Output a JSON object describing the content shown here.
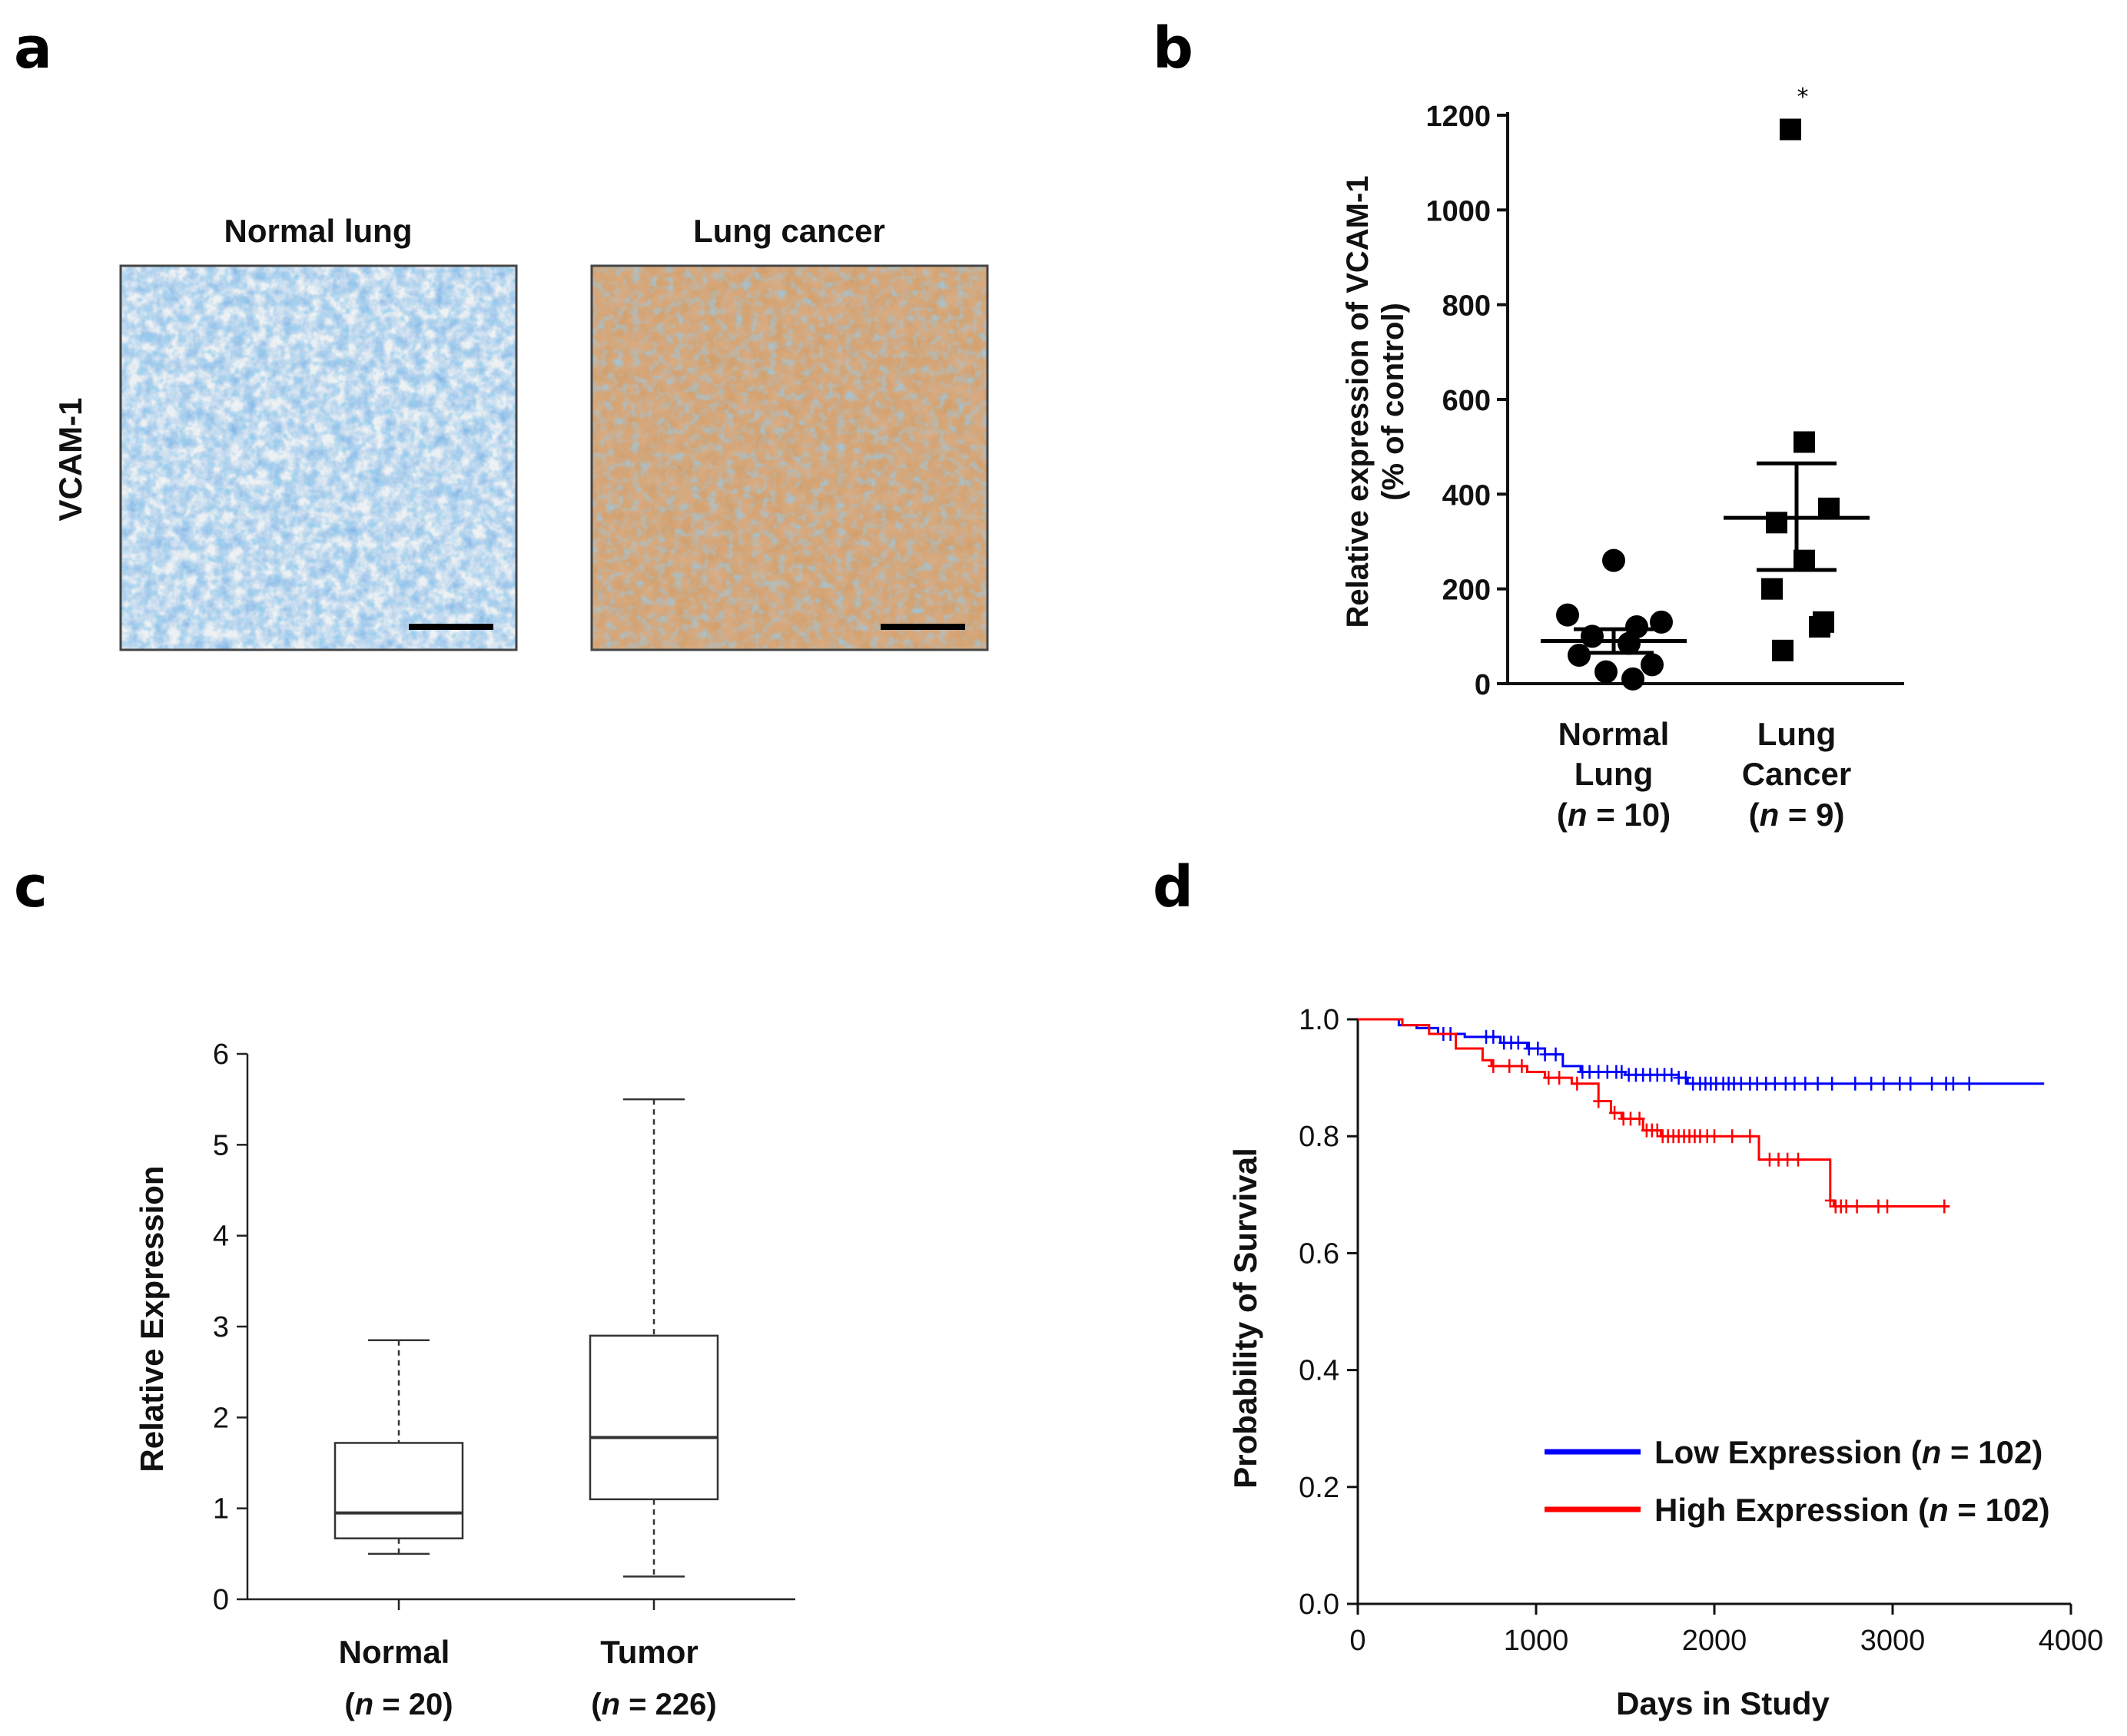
{
  "panels": {
    "a": "a",
    "b": "b",
    "c": "c",
    "d": "d"
  },
  "panel_a": {
    "row_label": "VCAM-1",
    "columns": [
      "Normal lung",
      "Lung cancer"
    ]
  },
  "chart_data": [
    {
      "panel": "b",
      "type": "scatter",
      "ylabel_line1": "Relative expression of VCAM-1",
      "ylabel_line2": "(% of control)",
      "ylim": [
        0,
        1200
      ],
      "yticks": [
        0,
        200,
        400,
        600,
        800,
        1000,
        1200
      ],
      "categories": [
        {
          "lines": [
            "Normal",
            "Lung"
          ],
          "n_italic": "n",
          "n_text": " = 10)"
        },
        {
          "lines": [
            "Lung",
            "Cancer"
          ],
          "n_italic": "n",
          "n_text": " = 9)"
        }
      ],
      "series": [
        {
          "values": [
            260,
            145,
            120,
            130,
            100,
            85,
            60,
            40,
            25,
            10
          ],
          "mean": 90,
          "sem": [
            65,
            115
          ],
          "marker": "circle"
        },
        {
          "values": [
            1170,
            510,
            370,
            340,
            260,
            200,
            130,
            120,
            70
          ],
          "mean": 350,
          "sem": [
            240,
            465
          ],
          "marker": "square"
        }
      ],
      "annotation": "*"
    },
    {
      "panel": "c",
      "type": "box",
      "ylabel": "Relative Expression",
      "ylim": [
        0,
        6
      ],
      "yticks": [
        0,
        1,
        2,
        3,
        4,
        5,
        6
      ],
      "categories": [
        {
          "label": "Normal",
          "n_italic": "n",
          "n_text": " = 20)"
        },
        {
          "label": "Tumor",
          "n_italic": "n",
          "n_text": " = 226)"
        }
      ],
      "boxes": [
        {
          "min": 0.5,
          "q1": 0.67,
          "median": 0.95,
          "q3": 1.72,
          "max": 2.85
        },
        {
          "min": 0.25,
          "q1": 1.1,
          "median": 1.78,
          "q3": 2.9,
          "max": 5.5
        }
      ]
    },
    {
      "panel": "d",
      "type": "line",
      "xlabel": "Days in Study",
      "ylabel": "Probability of Survival",
      "xlim": [
        0,
        4000
      ],
      "ylim": [
        0,
        1.0
      ],
      "xticks": [
        0,
        1000,
        2000,
        3000,
        4000
      ],
      "yticks": [
        "0.0",
        "0.2",
        "0.4",
        "0.6",
        "0.8",
        "1.0"
      ],
      "legend": "bottom-right",
      "series": [
        {
          "name_text": "Low Expression (",
          "name_italic": "n",
          "name_end": " = 102)",
          "color": "#0000ff",
          "steps": [
            [
              0,
              1.0
            ],
            [
              230,
              0.99
            ],
            [
              330,
              0.985
            ],
            [
              450,
              0.975
            ],
            [
              600,
              0.97
            ],
            [
              800,
              0.96
            ],
            [
              950,
              0.95
            ],
            [
              1050,
              0.94
            ],
            [
              1150,
              0.92
            ],
            [
              1250,
              0.91
            ],
            [
              1500,
              0.905
            ],
            [
              1800,
              0.9
            ],
            [
              1850,
              0.89
            ],
            [
              3850,
              0.89
            ]
          ],
          "censor": [
            480,
            520,
            720,
            760,
            820,
            860,
            900,
            960,
            1010,
            1050,
            1110,
            1260,
            1300,
            1350,
            1400,
            1450,
            1480,
            1520,
            1560,
            1600,
            1640,
            1680,
            1720,
            1760,
            1800,
            1840,
            1880,
            1920,
            1950,
            1980,
            2010,
            2050,
            2080,
            2110,
            2150,
            2200,
            2240,
            2290,
            2340,
            2400,
            2450,
            2510,
            2580,
            2660,
            2790,
            2880,
            2950,
            3040,
            3100,
            3220,
            3300,
            3340,
            3430
          ]
        },
        {
          "name_text": "High Expression (",
          "name_italic": "n",
          "name_end": " = 102)",
          "color": "#ff0000",
          "steps": [
            [
              0,
              1.0
            ],
            [
              250,
              0.99
            ],
            [
              400,
              0.975
            ],
            [
              550,
              0.95
            ],
            [
              700,
              0.93
            ],
            [
              750,
              0.92
            ],
            [
              950,
              0.91
            ],
            [
              1050,
              0.9
            ],
            [
              1200,
              0.89
            ],
            [
              1350,
              0.86
            ],
            [
              1420,
              0.84
            ],
            [
              1480,
              0.83
            ],
            [
              1600,
              0.81
            ],
            [
              1700,
              0.8
            ],
            [
              2250,
              0.76
            ],
            [
              2650,
              0.69
            ],
            [
              2670,
              0.68
            ],
            [
              3320,
              0.68
            ]
          ],
          "censor": [
            760,
            850,
            920,
            1070,
            1130,
            1230,
            1350,
            1440,
            1490,
            1530,
            1580,
            1620,
            1650,
            1680,
            1710,
            1740,
            1770,
            1800,
            1830,
            1860,
            1890,
            1920,
            1960,
            2000,
            2100,
            2200,
            2310,
            2360,
            2410,
            2470,
            2650,
            2680,
            2710,
            2740,
            2800,
            2920,
            2970,
            3290
          ]
        }
      ]
    }
  ]
}
